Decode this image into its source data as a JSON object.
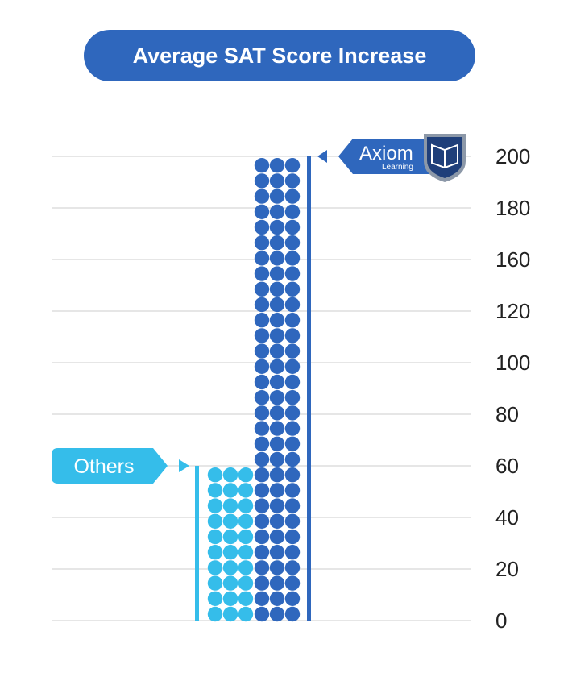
{
  "chart_data": {
    "type": "bar",
    "title": "Average SAT Score Increase",
    "categories": [
      "Others",
      "Axiom Learning"
    ],
    "series": [
      {
        "name": "Others",
        "values": [
          60,
          null
        ]
      },
      {
        "name": "Axiom Learning",
        "values": [
          null,
          200
        ]
      }
    ],
    "yticks": [
      "200",
      "180",
      "160",
      "120",
      "100",
      "80",
      "60",
      "40",
      "20",
      "0"
    ],
    "ylim": [
      0,
      200
    ],
    "grid": true,
    "axis_side": "right",
    "colors": {
      "others": "#35bdea",
      "axiom": "#2f67bd",
      "grid": "#cccccc",
      "tick_text": "#222222"
    },
    "labels": {
      "others": "Others",
      "axiom_logo_word": "Axiom",
      "axiom_logo_sub": "Learning"
    },
    "icons": {
      "logo": "book-shield-icon",
      "pointer": "triangle-pointer-icon"
    }
  }
}
